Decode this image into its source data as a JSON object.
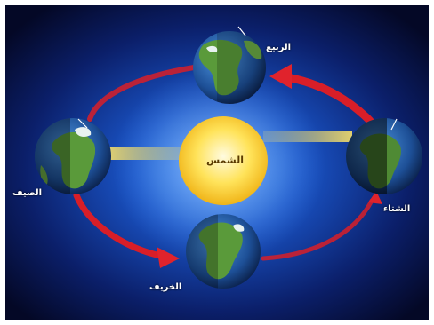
{
  "diagram": {
    "sun": {
      "label": "الشمس"
    },
    "seasons": {
      "spring": "الربيع",
      "summer": "الصيف",
      "autumn": "الخريف",
      "winter": "الشتاء"
    }
  },
  "colors": {
    "background_center": "#1f6fe0",
    "background_edge": "#050a2a",
    "orbit": "#d4202a",
    "sun": "#ffd640",
    "sunbeam": "#f2d95a",
    "ocean": "#1f5fae",
    "land": "#5a9a3a"
  }
}
